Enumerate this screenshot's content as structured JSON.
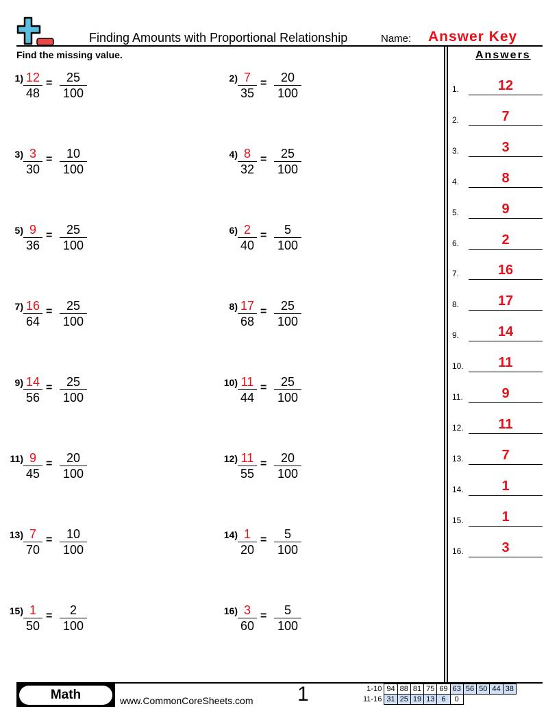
{
  "header": {
    "title": "Finding Amounts with Proportional Relationship",
    "name_label": "Name:",
    "answer_key": "Answer Key",
    "logo": "plus-minus-logo"
  },
  "instructions": "Find the missing value.",
  "problems": [
    {
      "label": "1)",
      "a": "12",
      "b": "48",
      "c": "25",
      "d": "100"
    },
    {
      "label": "2)",
      "a": "7",
      "b": "35",
      "c": "20",
      "d": "100"
    },
    {
      "label": "3)",
      "a": "3",
      "b": "30",
      "c": "10",
      "d": "100"
    },
    {
      "label": "4)",
      "a": "8",
      "b": "32",
      "c": "25",
      "d": "100"
    },
    {
      "label": "5)",
      "a": "9",
      "b": "36",
      "c": "25",
      "d": "100"
    },
    {
      "label": "6)",
      "a": "2",
      "b": "40",
      "c": "5",
      "d": "100"
    },
    {
      "label": "7)",
      "a": "16",
      "b": "64",
      "c": "25",
      "d": "100"
    },
    {
      "label": "8)",
      "a": "17",
      "b": "68",
      "c": "25",
      "d": "100"
    },
    {
      "label": "9)",
      "a": "14",
      "b": "56",
      "c": "25",
      "d": "100"
    },
    {
      "label": "10)",
      "a": "11",
      "b": "44",
      "c": "25",
      "d": "100"
    },
    {
      "label": "11)",
      "a": "9",
      "b": "45",
      "c": "20",
      "d": "100"
    },
    {
      "label": "12)",
      "a": "11",
      "b": "55",
      "c": "20",
      "d": "100"
    },
    {
      "label": "13)",
      "a": "7",
      "b": "70",
      "c": "10",
      "d": "100"
    },
    {
      "label": "14)",
      "a": "1",
      "b": "20",
      "c": "5",
      "d": "100"
    },
    {
      "label": "15)",
      "a": "1",
      "b": "50",
      "c": "2",
      "d": "100"
    },
    {
      "label": "16)",
      "a": "3",
      "b": "60",
      "c": "5",
      "d": "100"
    }
  ],
  "equals": "=",
  "answers": {
    "title": "Answers",
    "items": [
      {
        "n": "1.",
        "v": "12"
      },
      {
        "n": "2.",
        "v": "7"
      },
      {
        "n": "3.",
        "v": "3"
      },
      {
        "n": "4.",
        "v": "8"
      },
      {
        "n": "5.",
        "v": "9"
      },
      {
        "n": "6.",
        "v": "2"
      },
      {
        "n": "7.",
        "v": "16"
      },
      {
        "n": "8.",
        "v": "17"
      },
      {
        "n": "9.",
        "v": "14"
      },
      {
        "n": "10.",
        "v": "11"
      },
      {
        "n": "11.",
        "v": "9"
      },
      {
        "n": "12.",
        "v": "11"
      },
      {
        "n": "13.",
        "v": "7"
      },
      {
        "n": "14.",
        "v": "1"
      },
      {
        "n": "15.",
        "v": "1"
      },
      {
        "n": "16.",
        "v": "3"
      }
    ]
  },
  "footer": {
    "subject": "Math",
    "website": "www.CommonCoreSheets.com",
    "page": "1",
    "scores": [
      {
        "label": "1-10",
        "cells": [
          "94",
          "88",
          "81",
          "75",
          "69",
          "63",
          "56",
          "50",
          "44",
          "38"
        ],
        "shaded_from": 5
      },
      {
        "label": "11-16",
        "cells": [
          "31",
          "25",
          "19",
          "13",
          "6",
          "0"
        ],
        "shaded_until": 5
      }
    ]
  },
  "colors": {
    "answer": "#e8101a",
    "logo_plus": "#5bbfe0",
    "logo_minus": "#e84848",
    "score_shade": "#cfe0f7"
  }
}
